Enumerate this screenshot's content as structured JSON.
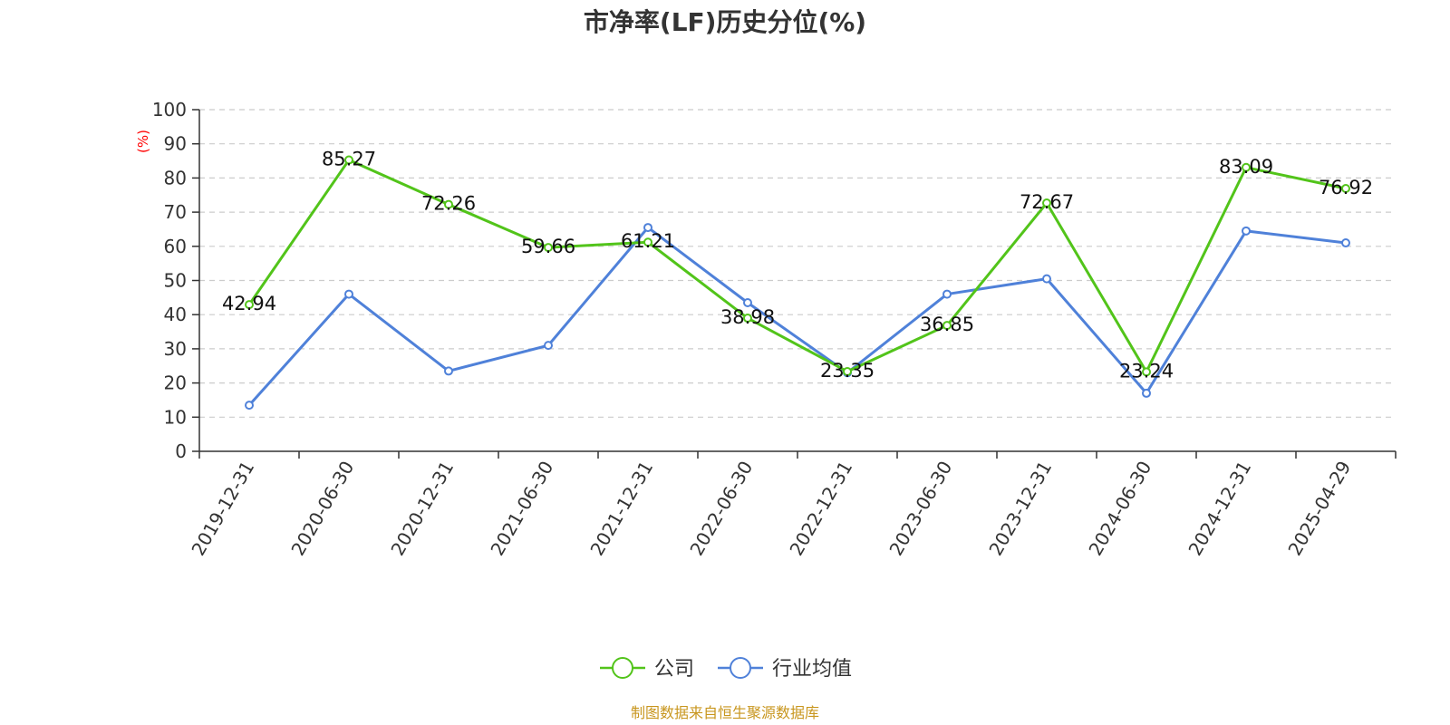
{
  "chart_data": {
    "type": "line",
    "title": "市净率(LF)历史分位(%)",
    "ylabel": "(%)",
    "ylim": [
      0,
      100
    ],
    "yticks": [
      0,
      10,
      20,
      30,
      40,
      50,
      60,
      70,
      80,
      90,
      100
    ],
    "grid": true,
    "legend_position": "bottom",
    "categories": [
      "2019-12-31",
      "2020-06-30",
      "2020-12-31",
      "2021-06-30",
      "2021-12-31",
      "2022-06-30",
      "2022-12-31",
      "2023-06-30",
      "2023-12-31",
      "2024-06-30",
      "2024-12-31",
      "2025-04-29"
    ],
    "series": [
      {
        "name": "公司",
        "color": "#52c41a",
        "values": [
          42.94,
          85.27,
          72.26,
          59.66,
          61.21,
          38.98,
          23.35,
          36.85,
          72.67,
          23.24,
          83.09,
          76.92
        ],
        "data_labels": [
          "42.94",
          "85.27",
          "72.26",
          "59.66",
          "61.21",
          "38.98",
          "23.35",
          "36.85",
          "72.67",
          "23.24",
          "83.09",
          "76.92"
        ]
      },
      {
        "name": "行业均值",
        "color": "#4f81d9",
        "values": [
          13.5,
          46.0,
          23.5,
          31.0,
          65.5,
          43.5,
          23.0,
          46.0,
          50.5,
          17.0,
          64.5,
          61.0
        ]
      }
    ]
  },
  "source": "制图数据来自恒生聚源数据库",
  "colors": {
    "axis": "#333333",
    "grid": "#cccccc",
    "unit": "#ff0000",
    "source": "#c8961e"
  }
}
